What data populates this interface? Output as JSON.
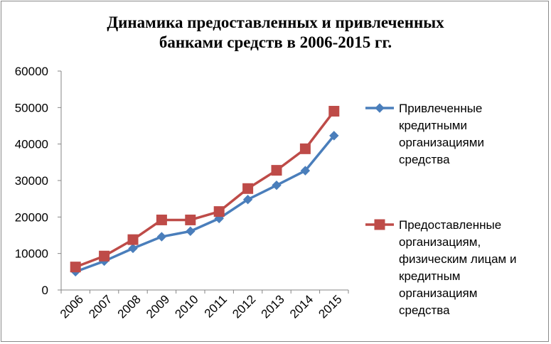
{
  "chart_data": {
    "type": "line",
    "title_lines": [
      "Динамика предоставленных и привлеченных",
      "банками средств в 2006-2015 гг."
    ],
    "xlabel": "",
    "ylabel": "",
    "categories": [
      "2006",
      "2007",
      "2008",
      "2009",
      "2010",
      "2011",
      "2012",
      "2013",
      "2014",
      "2015"
    ],
    "ylim": [
      0,
      60000
    ],
    "yticks": [
      "0",
      "10000",
      "20000",
      "30000",
      "40000",
      "50000",
      "60000"
    ],
    "grid": false,
    "legend_position": "right",
    "series": [
      {
        "name": "Привлеченные кредитными организациями средства",
        "legend_lines": [
          "Привлеченные",
          "кредитными",
          "организациями",
          "средства"
        ],
        "color": "#4a7ebb",
        "marker": "diamond",
        "values": [
          5000,
          7900,
          11400,
          14600,
          16100,
          19600,
          24800,
          28700,
          32700,
          42300
        ]
      },
      {
        "name": "Предоставленные организациям, физическим лицам и кредитным организациям средства",
        "legend_lines": [
          "Предоставленные",
          "организациям,",
          "физическим лицам и",
          "кредитным",
          "организациям",
          "средства"
        ],
        "color": "#be4b48",
        "marker": "square",
        "values": [
          6300,
          9300,
          13800,
          19200,
          19200,
          21500,
          27800,
          32800,
          38700,
          49000
        ]
      }
    ]
  }
}
